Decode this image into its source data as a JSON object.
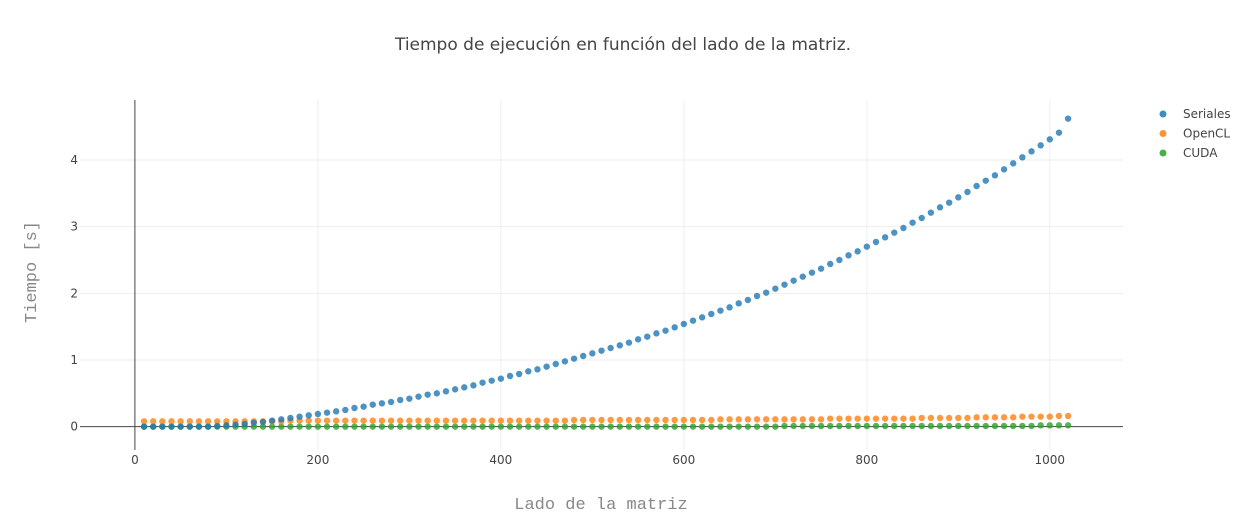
{
  "chart_data": {
    "type": "scatter",
    "title": "Tiempo de ejecución en función del lado de la matriz.",
    "xlabel": "Lado de la matriz",
    "ylabel": "Tiempo [s]",
    "xlim": [
      -60,
      1080
    ],
    "ylim": [
      -0.35,
      4.9
    ],
    "x_ticks": [
      0,
      200,
      400,
      600,
      800,
      1000
    ],
    "y_ticks": [
      0,
      1,
      2,
      3,
      4
    ],
    "grid": true,
    "legend_position": "top-right",
    "x": [
      10,
      20,
      30,
      40,
      50,
      60,
      70,
      80,
      90,
      100,
      110,
      120,
      130,
      140,
      150,
      160,
      170,
      180,
      190,
      200,
      210,
      220,
      230,
      240,
      250,
      260,
      270,
      280,
      290,
      300,
      310,
      320,
      330,
      340,
      350,
      360,
      370,
      380,
      390,
      400,
      410,
      420,
      430,
      440,
      450,
      460,
      470,
      480,
      490,
      500,
      510,
      520,
      530,
      540,
      550,
      560,
      570,
      580,
      590,
      600,
      610,
      620,
      630,
      640,
      650,
      660,
      670,
      680,
      690,
      700,
      710,
      720,
      730,
      740,
      750,
      760,
      770,
      780,
      790,
      800,
      810,
      820,
      830,
      840,
      850,
      860,
      870,
      880,
      890,
      900,
      910,
      920,
      930,
      940,
      950,
      960,
      970,
      980,
      990,
      1000,
      1010,
      1020
    ],
    "series": [
      {
        "name": "Seriales",
        "color": "#1f77b4",
        "values": [
          0.0,
          0.0,
          0.0,
          0.0,
          0.0,
          0.0,
          0.0,
          0.0,
          0.01,
          0.02,
          0.03,
          0.04,
          0.06,
          0.07,
          0.09,
          0.11,
          0.13,
          0.15,
          0.17,
          0.19,
          0.21,
          0.23,
          0.25,
          0.28,
          0.3,
          0.33,
          0.35,
          0.37,
          0.4,
          0.42,
          0.45,
          0.48,
          0.5,
          0.53,
          0.56,
          0.59,
          0.62,
          0.66,
          0.69,
          0.72,
          0.76,
          0.79,
          0.83,
          0.86,
          0.9,
          0.94,
          0.98,
          1.02,
          1.06,
          1.1,
          1.14,
          1.18,
          1.22,
          1.26,
          1.31,
          1.35,
          1.4,
          1.44,
          1.49,
          1.54,
          1.59,
          1.64,
          1.69,
          1.74,
          1.79,
          1.85,
          1.9,
          1.96,
          2.01,
          2.07,
          2.13,
          2.19,
          2.25,
          2.31,
          2.37,
          2.44,
          2.5,
          2.57,
          2.63,
          2.7,
          2.77,
          2.84,
          2.91,
          2.98,
          3.06,
          3.13,
          3.21,
          3.29,
          3.36,
          3.44,
          3.52,
          3.61,
          3.69,
          3.77,
          3.86,
          3.95,
          4.04,
          4.13,
          4.22,
          4.31,
          4.41,
          4.62
        ]
      },
      {
        "name": "OpenCL",
        "color": "#ff7f0e",
        "values": [
          0.08,
          0.08,
          0.08,
          0.08,
          0.08,
          0.08,
          0.08,
          0.08,
          0.08,
          0.08,
          0.08,
          0.08,
          0.08,
          0.08,
          0.08,
          0.08,
          0.09,
          0.09,
          0.09,
          0.09,
          0.09,
          0.09,
          0.09,
          0.09,
          0.09,
          0.09,
          0.09,
          0.09,
          0.09,
          0.09,
          0.09,
          0.09,
          0.09,
          0.09,
          0.09,
          0.09,
          0.09,
          0.09,
          0.09,
          0.09,
          0.09,
          0.09,
          0.09,
          0.09,
          0.09,
          0.09,
          0.09,
          0.1,
          0.1,
          0.1,
          0.1,
          0.1,
          0.1,
          0.1,
          0.1,
          0.1,
          0.1,
          0.1,
          0.1,
          0.1,
          0.1,
          0.1,
          0.1,
          0.11,
          0.11,
          0.11,
          0.11,
          0.11,
          0.11,
          0.11,
          0.11,
          0.11,
          0.11,
          0.11,
          0.11,
          0.12,
          0.12,
          0.12,
          0.12,
          0.12,
          0.12,
          0.12,
          0.12,
          0.12,
          0.12,
          0.13,
          0.13,
          0.13,
          0.13,
          0.13,
          0.13,
          0.14,
          0.14,
          0.14,
          0.14,
          0.14,
          0.15,
          0.15,
          0.15,
          0.15,
          0.16,
          0.16
        ]
      },
      {
        "name": "CUDA",
        "color": "#2ca02c",
        "values": [
          0.0,
          0.0,
          0.0,
          0.0,
          0.0,
          0.0,
          0.0,
          0.0,
          0.0,
          0.0,
          0.0,
          0.0,
          0.0,
          0.0,
          0.0,
          0.0,
          0.0,
          0.0,
          0.0,
          0.0,
          0.0,
          0.0,
          0.0,
          0.0,
          0.0,
          0.0,
          0.0,
          0.0,
          0.0,
          0.0,
          0.0,
          0.0,
          0.0,
          0.0,
          0.0,
          0.0,
          0.0,
          0.0,
          0.0,
          0.0,
          0.0,
          0.0,
          0.0,
          0.0,
          0.0,
          0.0,
          0.0,
          0.0,
          0.0,
          0.0,
          0.0,
          0.0,
          0.0,
          0.0,
          0.0,
          0.0,
          0.0,
          0.0,
          0.0,
          0.0,
          0.0,
          0.0,
          0.0,
          0.0,
          0.0,
          0.0,
          0.0,
          0.0,
          0.0,
          0.0,
          0.01,
          0.01,
          0.01,
          0.01,
          0.01,
          0.01,
          0.01,
          0.01,
          0.01,
          0.01,
          0.01,
          0.01,
          0.01,
          0.01,
          0.01,
          0.01,
          0.01,
          0.01,
          0.01,
          0.01,
          0.01,
          0.01,
          0.01,
          0.01,
          0.01,
          0.01,
          0.01,
          0.01,
          0.02,
          0.02,
          0.02,
          0.02
        ]
      }
    ]
  }
}
